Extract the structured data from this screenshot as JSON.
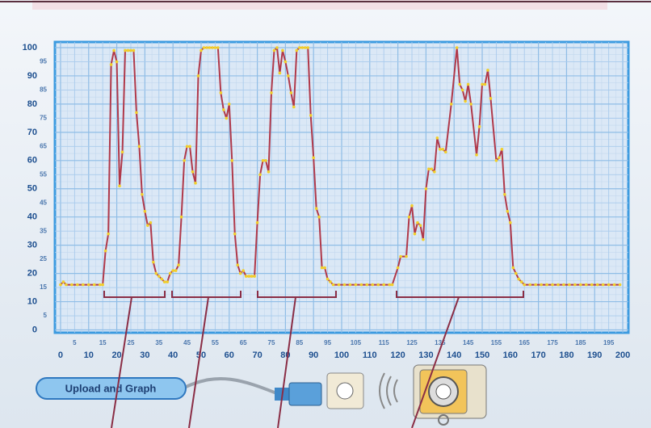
{
  "chart_data": {
    "type": "line",
    "x": [
      0,
      1,
      2,
      4,
      6,
      8,
      10,
      12,
      14,
      15,
      16,
      17,
      18,
      19,
      20,
      21,
      22,
      23,
      24,
      25,
      26,
      27,
      28,
      29,
      30,
      31,
      32,
      33,
      34,
      35,
      36,
      37,
      38,
      39,
      40,
      41,
      42,
      43,
      44,
      45,
      46,
      47,
      48,
      49,
      50,
      51,
      52,
      53,
      54,
      55,
      56,
      57,
      58,
      59,
      60,
      61,
      62,
      63,
      64,
      65,
      66,
      67,
      68,
      69,
      70,
      71,
      72,
      73,
      74,
      75,
      76,
      77,
      78,
      79,
      80,
      81,
      82,
      83,
      84,
      85,
      86,
      87,
      88,
      89,
      90,
      91,
      92,
      93,
      94,
      95,
      96,
      97,
      99,
      101,
      103,
      105,
      107,
      109,
      111,
      113,
      115,
      117,
      118,
      120,
      121,
      123,
      124,
      125,
      126,
      127,
      128,
      129,
      130,
      131,
      132,
      133,
      134,
      135,
      136,
      137,
      139,
      141,
      142,
      143,
      144,
      145,
      146,
      148,
      149,
      150,
      151,
      152,
      153,
      155,
      156,
      157,
      158,
      159,
      160,
      161,
      162,
      163,
      164,
      165,
      167,
      169,
      171,
      173,
      175,
      177,
      179,
      181,
      183,
      185,
      187,
      189,
      191,
      193,
      195,
      197,
      199
    ],
    "values": [
      16,
      17,
      16,
      16,
      16,
      16,
      16,
      16,
      16,
      16,
      28,
      34,
      94,
      99,
      95,
      51,
      63,
      99,
      99,
      99,
      99,
      77,
      65,
      48,
      42,
      37,
      38,
      24,
      20,
      19,
      18,
      17,
      17,
      20,
      21,
      21,
      23,
      40,
      60,
      65,
      65,
      56,
      52,
      90,
      99,
      100,
      100,
      100,
      100,
      100,
      100,
      84,
      78,
      75,
      80,
      60,
      34,
      23,
      20,
      21,
      19,
      19,
      19,
      19,
      38,
      55,
      60,
      60,
      56,
      84,
      99,
      100,
      91,
      99,
      95,
      90,
      84,
      79,
      99,
      100,
      100,
      100,
      100,
      76,
      61,
      43,
      40,
      22,
      22,
      18,
      17,
      16,
      16,
      16,
      16,
      16,
      16,
      16,
      16,
      16,
      16,
      16,
      16,
      22,
      26,
      26,
      40,
      44,
      34,
      38,
      37,
      32,
      50,
      57,
      57,
      56,
      68,
      64,
      64,
      63,
      80,
      100,
      87,
      85,
      81,
      87,
      80,
      62,
      72,
      87,
      87,
      92,
      82,
      60,
      61,
      64,
      48,
      42,
      38,
      22,
      20,
      18,
      17,
      16,
      16,
      16,
      16,
      16,
      16,
      16,
      16,
      16,
      16,
      16,
      16,
      16,
      16,
      16,
      16,
      16,
      16
    ],
    "color": "#b0394a",
    "marker_color": "#f2cf2a",
    "xlim": [
      -2,
      202
    ],
    "ylim": [
      -1,
      102
    ],
    "xticks": [
      0,
      10,
      20,
      30,
      40,
      50,
      60,
      70,
      80,
      90,
      100,
      110,
      120,
      130,
      140,
      150,
      160,
      170,
      180,
      190,
      200
    ],
    "xticks_minor": [
      5,
      15,
      25,
      35,
      45,
      55,
      65,
      75,
      85,
      95,
      105,
      115,
      125,
      135,
      145,
      155,
      165,
      175,
      185,
      195
    ],
    "yticks": [
      0,
      10,
      20,
      30,
      40,
      50,
      60,
      70,
      80,
      90,
      100
    ],
    "yticks_minor": [
      5,
      15,
      25,
      35,
      45,
      55,
      65,
      75,
      85,
      95
    ],
    "grid": true
  },
  "button_label": "Upload and Graph"
}
